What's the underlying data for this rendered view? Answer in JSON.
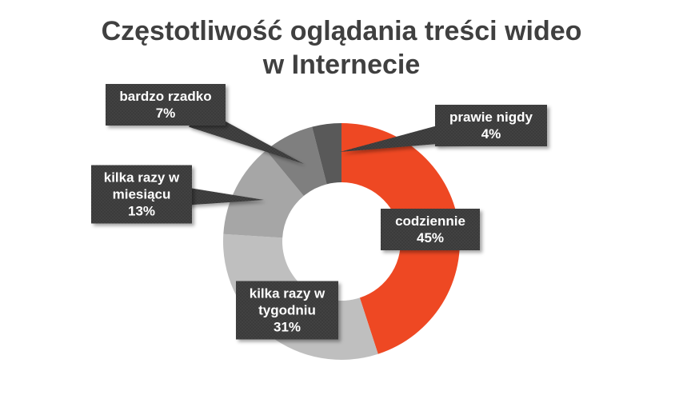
{
  "chart_data": {
    "type": "pie",
    "variant": "donut",
    "title_lines": [
      "Częstotliwość oglądania treści wideo",
      "w Internecie"
    ],
    "slices": [
      {
        "label_lines": [
          "codziennie"
        ],
        "value": 45,
        "value_label": "45%",
        "color": "#ee4823"
      },
      {
        "label_lines": [
          "kilka razy w",
          "tygodniu"
        ],
        "value": 31,
        "value_label": "31%",
        "color": "#bfbfbf"
      },
      {
        "label_lines": [
          "kilka razy w",
          "miesiącu"
        ],
        "value": 13,
        "value_label": "13%",
        "color": "#a6a6a6"
      },
      {
        "label_lines": [
          "bardzo rzadko"
        ],
        "value": 7,
        "value_label": "7%",
        "color": "#7f7f7f"
      },
      {
        "label_lines": [
          "prawie nigdy"
        ],
        "value": 4,
        "value_label": "4%",
        "color": "#595959"
      }
    ],
    "label_box_color": "#404040",
    "label_text_color": "#ffffff",
    "legend": "none"
  }
}
